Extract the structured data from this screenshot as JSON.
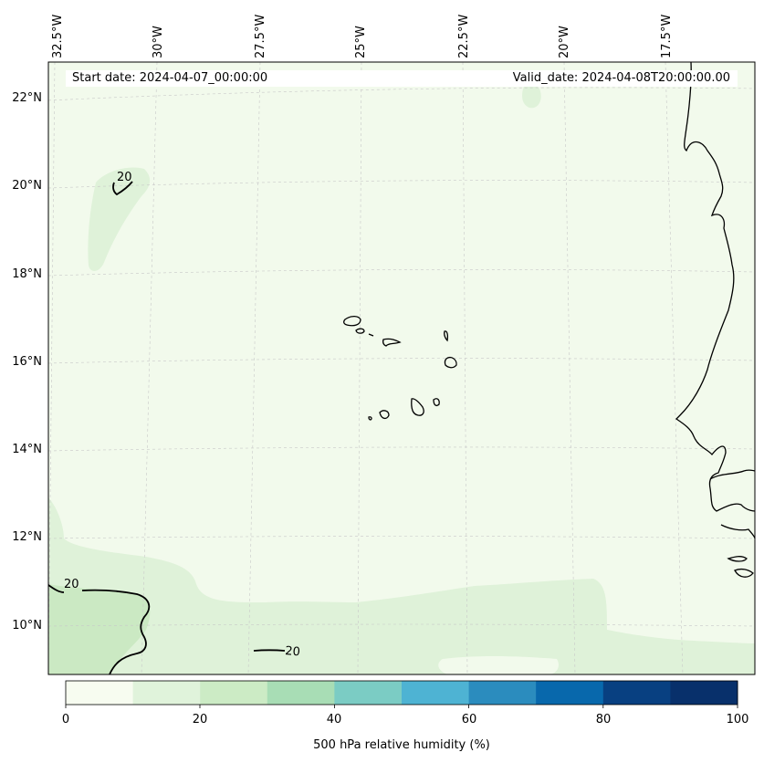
{
  "header": {
    "start_date": "Start date: 2024-04-07_00:00:00",
    "valid_date": "Valid_date: 2024-04-08T20:00:00.00"
  },
  "map": {
    "longitude_labels": [
      "32.5°W",
      "30°W",
      "27.5°W",
      "25°W",
      "22.5°W",
      "20°W",
      "17.5°W"
    ],
    "latitude_labels": [
      "22°N",
      "20°N",
      "18°N",
      "16°N",
      "14°N",
      "12°N",
      "10°N"
    ],
    "contour_labels": [
      "20",
      "20",
      "20"
    ],
    "colors": {
      "bin_0_10": "#f2faec",
      "bin_10_20": "#dff2d9",
      "bin_20_30": "#cbe9c3",
      "coastline": "#000000",
      "gridline": "#c8c8c8"
    }
  },
  "colorbar": {
    "title": "500 hPa relative humidity (%)",
    "tick_labels": [
      "0",
      "20",
      "40",
      "60",
      "80",
      "100"
    ],
    "colors": [
      "#f7fcf0",
      "#e0f3db",
      "#ccebc5",
      "#a8ddb5",
      "#7bccc4",
      "#4eb3d3",
      "#2b8cbe",
      "#0868ac",
      "#084081",
      "#08306b"
    ]
  }
}
